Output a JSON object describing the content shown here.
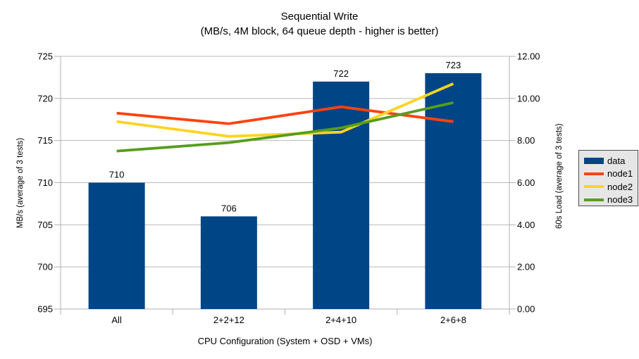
{
  "chart_data": {
    "type": "combo-bar-line",
    "title": "Sequential Write",
    "subtitle": "(MB/s, 4M block, 64 queue depth - higher is better)",
    "categories": [
      "All",
      "2+2+12",
      "2+4+10",
      "2+6+8"
    ],
    "xlabel": "CPU Configuration (System + OSD + VMs)",
    "left_axis": {
      "label": "MB/s (average of 3 tests)",
      "min": 695,
      "max": 725,
      "step": 5
    },
    "right_axis": {
      "label": "60s Load (average of 3 tests)",
      "min": 0,
      "max": 12,
      "step": 2,
      "decimals": 2
    },
    "bar_series": {
      "name": "data",
      "axis": "left",
      "color": "#004586",
      "values": [
        710,
        706,
        722,
        723
      ],
      "value_labels": [
        "710",
        "706",
        "722",
        "723"
      ]
    },
    "line_series": [
      {
        "name": "node1",
        "axis": "right",
        "color": "#FF420E",
        "values": [
          9.3,
          8.8,
          9.6,
          8.9
        ]
      },
      {
        "name": "node2",
        "axis": "right",
        "color": "#FFD320",
        "values": [
          8.9,
          8.2,
          8.4,
          10.7
        ]
      },
      {
        "name": "node3",
        "axis": "right",
        "color": "#579D1C",
        "values": [
          7.5,
          7.9,
          8.6,
          9.8
        ]
      }
    ],
    "legend": {
      "position": "right",
      "items": [
        "data",
        "node1",
        "node2",
        "node3"
      ],
      "bg": "#e6e6e6",
      "border": "#4d4d4d"
    },
    "grid": true,
    "gridline_color": "#b9b9b9",
    "axis_color": "#b0b0b0",
    "text_color": "#000000",
    "background": "#ffffff"
  }
}
